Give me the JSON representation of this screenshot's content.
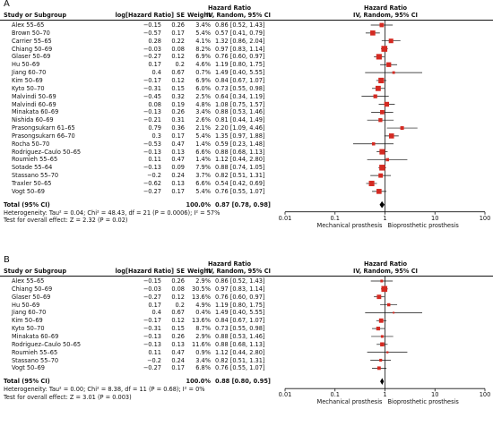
{
  "colors": {
    "point": "#d42a22",
    "ci_line": "#111111",
    "diamond": "#000000"
  },
  "headers": {
    "study": "Study or Subgroup",
    "loghr": "log[Hazard Ratio]",
    "se": "SE",
    "weight": "Weight",
    "hr_title": "Hazard Ratio",
    "hr_sub": "IV, Random, 95% CI",
    "plot_title": "Hazard Ratio",
    "plot_sub": "IV, Random, 95% CI"
  },
  "chart_data": [
    {
      "type": "forest",
      "panel_label": "A",
      "x_scale": "log",
      "xlim": [
        0.01,
        100
      ],
      "x_ticks": [
        "0.01",
        "0.1",
        "1",
        "10",
        "100"
      ],
      "x_tick_values": [
        0.01,
        0.1,
        1,
        10,
        100
      ],
      "favours_left": "Mechanical prosthesis",
      "favours_right": "Bioprosthetic prosthesis",
      "studies": [
        {
          "name": "Alex 55–65",
          "loghr": "−0.15",
          "se": "0.26",
          "weight": "3.4%",
          "ci_text": "0.86 [0.52, 1.43]",
          "hr": 0.86,
          "lo": 0.52,
          "hi": 1.43,
          "w": 3.4
        },
        {
          "name": "Brown 50–70",
          "loghr": "−0.57",
          "se": "0.17",
          "weight": "5.4%",
          "ci_text": "0.57 [0.41, 0.79]",
          "hr": 0.57,
          "lo": 0.41,
          "hi": 0.79,
          "w": 5.4
        },
        {
          "name": "Carrier 55–65",
          "loghr": "0.28",
          "se": "0.22",
          "weight": "4.1%",
          "ci_text": "1.32 [0.86, 2.04]",
          "hr": 1.32,
          "lo": 0.86,
          "hi": 2.04,
          "w": 4.1
        },
        {
          "name": "Chiang 50–69",
          "loghr": "−0.03",
          "se": "0.08",
          "weight": "8.2%",
          "ci_text": "0.97 [0.83, 1.14]",
          "hr": 0.97,
          "lo": 0.83,
          "hi": 1.14,
          "w": 8.2
        },
        {
          "name": "Glaser 50–69",
          "loghr": "−0.27",
          "se": "0.12",
          "weight": "6.9%",
          "ci_text": "0.76 [0.60, 0.97]",
          "hr": 0.76,
          "lo": 0.6,
          "hi": 0.97,
          "w": 6.9
        },
        {
          "name": "Hu 50–69",
          "loghr": "0.17",
          "se": "0.2",
          "weight": "4.6%",
          "ci_text": "1.19 [0.80, 1.75]",
          "hr": 1.19,
          "lo": 0.8,
          "hi": 1.75,
          "w": 4.6
        },
        {
          "name": "Jiang 60–70",
          "loghr": "0.4",
          "se": "0.67",
          "weight": "0.7%",
          "ci_text": "1.49 [0.40, 5.55]",
          "hr": 1.49,
          "lo": 0.4,
          "hi": 5.55,
          "w": 0.7
        },
        {
          "name": "Kim 50–69",
          "loghr": "−0.17",
          "se": "0.12",
          "weight": "6.9%",
          "ci_text": "0.84 [0.67, 1.07]",
          "hr": 0.84,
          "lo": 0.67,
          "hi": 1.07,
          "w": 6.9
        },
        {
          "name": "Kyto 50–70",
          "loghr": "−0.31",
          "se": "0.15",
          "weight": "6.0%",
          "ci_text": "0.73 [0.55, 0.98]",
          "hr": 0.73,
          "lo": 0.55,
          "hi": 0.98,
          "w": 6.0
        },
        {
          "name": "Malvindi 50–69",
          "loghr": "−0.45",
          "se": "0.32",
          "weight": "2.5%",
          "ci_text": "0.64 [0.34, 1.19]",
          "hr": 0.64,
          "lo": 0.34,
          "hi": 1.19,
          "w": 2.5
        },
        {
          "name": "Malvindi 60–69",
          "loghr": "0.08",
          "se": "0.19",
          "weight": "4.8%",
          "ci_text": "1.08 [0.75, 1.57]",
          "hr": 1.08,
          "lo": 0.75,
          "hi": 1.57,
          "w": 4.8
        },
        {
          "name": "Minakata 60–69",
          "loghr": "−0.13",
          "se": "0.26",
          "weight": "3.4%",
          "ci_text": "0.88 [0.53, 1.46]",
          "hr": 0.88,
          "lo": 0.53,
          "hi": 1.46,
          "w": 3.4
        },
        {
          "name": "Nishida 60–69",
          "loghr": "−0.21",
          "se": "0.31",
          "weight": "2.6%",
          "ci_text": "0.81 [0.44, 1.49]",
          "hr": 0.81,
          "lo": 0.44,
          "hi": 1.49,
          "w": 2.6
        },
        {
          "name": "Prasongsukarn 61–65",
          "loghr": "0.79",
          "se": "0.36",
          "weight": "2.1%",
          "ci_text": "2.20 [1.09, 4.46]",
          "hr": 2.2,
          "lo": 1.09,
          "hi": 4.46,
          "w": 2.1
        },
        {
          "name": "Prasongsukarn 66–70",
          "loghr": "0.3",
          "se": "0.17",
          "weight": "5.4%",
          "ci_text": "1.35 [0.97, 1.88]",
          "hr": 1.35,
          "lo": 0.97,
          "hi": 1.88,
          "w": 5.4
        },
        {
          "name": "Rocha 50–70",
          "loghr": "−0.53",
          "se": "0.47",
          "weight": "1.4%",
          "ci_text": "0.59 [0.23, 1.48]",
          "hr": 0.59,
          "lo": 0.23,
          "hi": 1.48,
          "w": 1.4
        },
        {
          "name": "Rodriguez–Caulo 50–65",
          "loghr": "−0.13",
          "se": "0.13",
          "weight": "6.6%",
          "ci_text": "0.88 [0.68, 1.13]",
          "hr": 0.88,
          "lo": 0.68,
          "hi": 1.13,
          "w": 6.6
        },
        {
          "name": "Roumieh 55–65",
          "loghr": "0.11",
          "se": "0.47",
          "weight": "1.4%",
          "ci_text": "1.12 [0.44, 2.80]",
          "hr": 1.12,
          "lo": 0.44,
          "hi": 2.8,
          "w": 1.4
        },
        {
          "name": "Sotade 55–64",
          "loghr": "−0.13",
          "se": "0.09",
          "weight": "7.9%",
          "ci_text": "0.88 [0.74, 1.05]",
          "hr": 0.88,
          "lo": 0.74,
          "hi": 1.05,
          "w": 7.9
        },
        {
          "name": "Stassano 55–70",
          "loghr": "−0.2",
          "se": "0.24",
          "weight": "3.7%",
          "ci_text": "0.82 [0.51, 1.31]",
          "hr": 0.82,
          "lo": 0.51,
          "hi": 1.31,
          "w": 3.7
        },
        {
          "name": "Traxler 50–65",
          "loghr": "−0.62",
          "se": "0.13",
          "weight": "6.6%",
          "ci_text": "0.54 [0.42, 0.69]",
          "hr": 0.54,
          "lo": 0.42,
          "hi": 0.69,
          "w": 6.6
        },
        {
          "name": "Vogt 50–69",
          "loghr": "−0.27",
          "se": "0.17",
          "weight": "5.4%",
          "ci_text": "0.76 [0.55, 1.07]",
          "hr": 0.76,
          "lo": 0.55,
          "hi": 1.07,
          "w": 5.4
        }
      ],
      "total": {
        "label": "Total (95% CI)",
        "weight": "100.0%",
        "ci_text": "0.87 [0.78, 0.98]",
        "hr": 0.87,
        "lo": 0.78,
        "hi": 0.98
      },
      "heterogeneity": "Heterogeneity: Tau² = 0.04; Chi² = 48.43, df = 21 (P = 0.0006); I² = 57%",
      "overall_test": "Test for overall effect: Z = 2.32 (P = 0.02)"
    },
    {
      "type": "forest",
      "panel_label": "B",
      "x_scale": "log",
      "xlim": [
        0.01,
        100
      ],
      "x_ticks": [
        "0.01",
        "0.1",
        "1",
        "10",
        "100"
      ],
      "x_tick_values": [
        0.01,
        0.1,
        1,
        10,
        100
      ],
      "favours_left": "Mechanical prosthesis",
      "favours_right": "Bioprosthetic prosthesis",
      "studies": [
        {
          "name": "Alex 55–65",
          "loghr": "−0.15",
          "se": "0.26",
          "weight": "2.9%",
          "ci_text": "0.86 [0.52, 1.43]",
          "hr": 0.86,
          "lo": 0.52,
          "hi": 1.43,
          "w": 2.9
        },
        {
          "name": "Chiang 50–69",
          "loghr": "−0.03",
          "se": "0.08",
          "weight": "30.5%",
          "ci_text": "0.97 [0.83, 1.14]",
          "hr": 0.97,
          "lo": 0.83,
          "hi": 1.14,
          "w": 30.5
        },
        {
          "name": "Glaser 50–69",
          "loghr": "−0.27",
          "se": "0.12",
          "weight": "13.6%",
          "ci_text": "0.76 [0.60, 0.97]",
          "hr": 0.76,
          "lo": 0.6,
          "hi": 0.97,
          "w": 13.6
        },
        {
          "name": "Hu 50–69",
          "loghr": "0.17",
          "se": "0.2",
          "weight": "4.9%",
          "ci_text": "1.19 [0.80, 1.75]",
          "hr": 1.19,
          "lo": 0.8,
          "hi": 1.75,
          "w": 4.9
        },
        {
          "name": "Jiang 60–70",
          "loghr": "0.4",
          "se": "0.67",
          "weight": "0.4%",
          "ci_text": "1.49 [0.40, 5.55]",
          "hr": 1.49,
          "lo": 0.4,
          "hi": 5.55,
          "w": 0.4
        },
        {
          "name": "Kim 50–69",
          "loghr": "−0.17",
          "se": "0.12",
          "weight": "13.6%",
          "ci_text": "0.84 [0.67, 1.07]",
          "hr": 0.84,
          "lo": 0.67,
          "hi": 1.07,
          "w": 13.6
        },
        {
          "name": "Kyto 50–70",
          "loghr": "−0.31",
          "se": "0.15",
          "weight": "8.7%",
          "ci_text": "0.73 [0.55, 0.98]",
          "hr": 0.73,
          "lo": 0.55,
          "hi": 0.98,
          "w": 8.7
        },
        {
          "name": "Minakata 60–69",
          "loghr": "−0.13",
          "se": "0.26",
          "weight": "2.9%",
          "ci_text": "0.88 [0.53, 1.46]",
          "hr": 0.88,
          "lo": 0.53,
          "hi": 1.46,
          "w": 2.9
        },
        {
          "name": "Rodriguez–Caulo 50–65",
          "loghr": "−0.13",
          "se": "0.13",
          "weight": "11.6%",
          "ci_text": "0.88 [0.68, 1.13]",
          "hr": 0.88,
          "lo": 0.68,
          "hi": 1.13,
          "w": 11.6
        },
        {
          "name": "Roumieh 55–65",
          "loghr": "0.11",
          "se": "0.47",
          "weight": "0.9%",
          "ci_text": "1.12 [0.44, 2.80]",
          "hr": 1.12,
          "lo": 0.44,
          "hi": 2.8,
          "w": 0.9
        },
        {
          "name": "Stassano 55–70",
          "loghr": "−0.2",
          "se": "0.24",
          "weight": "3.4%",
          "ci_text": "0.82 [0.51, 1.31]",
          "hr": 0.82,
          "lo": 0.51,
          "hi": 1.31,
          "w": 3.4
        },
        {
          "name": "Vogt 50–69",
          "loghr": "−0.27",
          "se": "0.17",
          "weight": "6.8%",
          "ci_text": "0.76 [0.55, 1.07]",
          "hr": 0.76,
          "lo": 0.55,
          "hi": 1.07,
          "w": 6.8
        }
      ],
      "total": {
        "label": "Total (95% CI)",
        "weight": "100.0%",
        "ci_text": "0.88 [0.80, 0.95]",
        "hr": 0.88,
        "lo": 0.8,
        "hi": 0.95
      },
      "heterogeneity": "Heterogeneity: Tau² = 0.00; Chi² = 8.38, df = 11 (P = 0.68); I² = 0%",
      "overall_test": "Test for overall effect: Z = 3.01 (P = 0.003)"
    }
  ]
}
